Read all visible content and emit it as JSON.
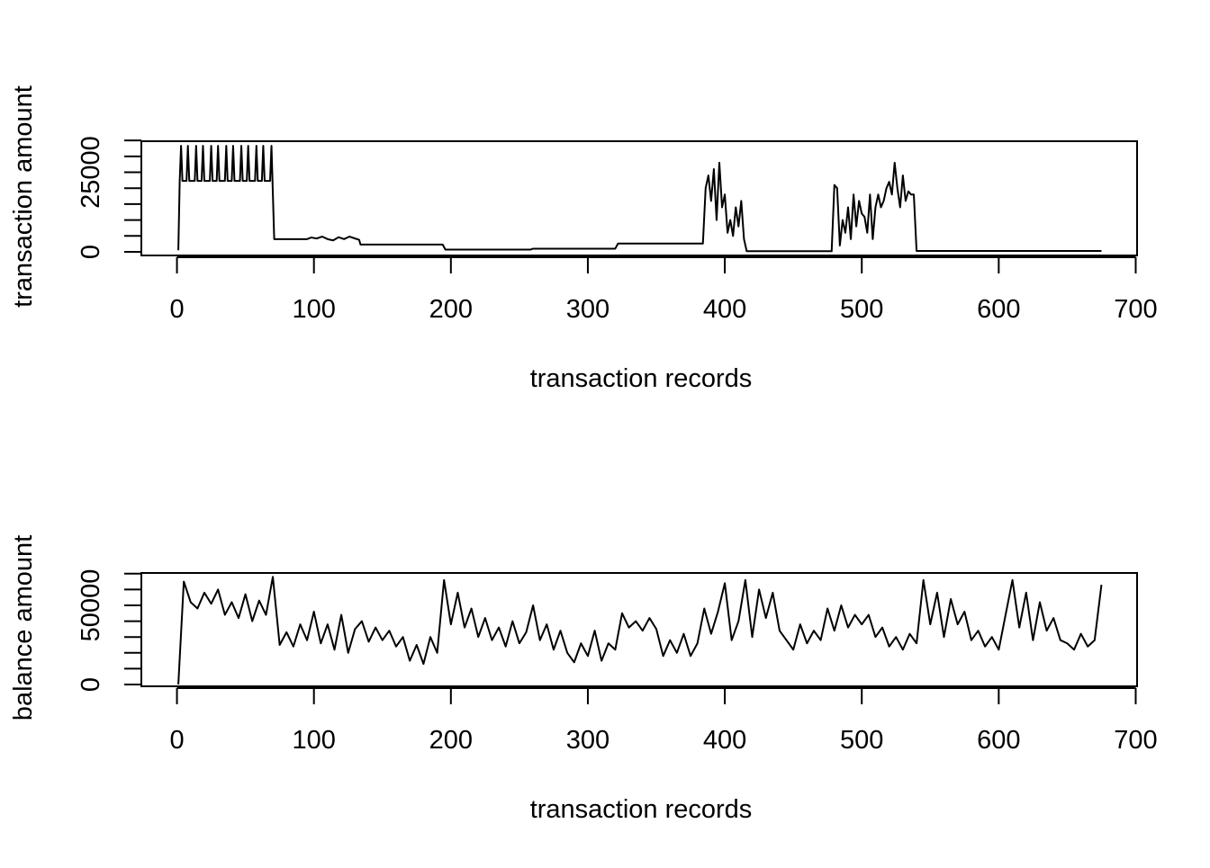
{
  "chart_data": [
    {
      "type": "line",
      "xlabel": "transaction records",
      "ylabel": "transaction amount",
      "color": "#000000",
      "xlim": [
        -26,
        701
      ],
      "ylim": [
        -1130,
        34750
      ],
      "xticks": [
        0,
        100,
        200,
        300,
        400,
        500,
        600,
        700
      ],
      "yticks": [
        0,
        25000
      ],
      "yticks_minor": [
        5000,
        10000,
        15000,
        20000,
        30000,
        35000
      ],
      "x": [
        1,
        2,
        3,
        4,
        7,
        8,
        9,
        13,
        14,
        15,
        18,
        19,
        20,
        24,
        25,
        26,
        29,
        30,
        31,
        35,
        36,
        37,
        40,
        41,
        42,
        46,
        47,
        48,
        51,
        52,
        53,
        57,
        58,
        59,
        62,
        63,
        64,
        68,
        69,
        71,
        95,
        98,
        102,
        106,
        110,
        114,
        118,
        122,
        126,
        130,
        133,
        134,
        194,
        196,
        258,
        260,
        320,
        322,
        384,
        386,
        388,
        390,
        392,
        394,
        396,
        398,
        400,
        402,
        404,
        406,
        408,
        410,
        412,
        414,
        416,
        478,
        480,
        482,
        484,
        486,
        488,
        490,
        492,
        494,
        496,
        498,
        500,
        502,
        504,
        506,
        508,
        510,
        512,
        514,
        516,
        518,
        520,
        522,
        524,
        526,
        528,
        530,
        532,
        534,
        536,
        538,
        540,
        600,
        675
      ],
      "values": [
        500,
        22300,
        33300,
        22300,
        22300,
        33300,
        22300,
        22300,
        33300,
        22300,
        22300,
        33300,
        22300,
        22300,
        33300,
        22300,
        22300,
        33300,
        22300,
        22300,
        33300,
        22300,
        22300,
        33300,
        22300,
        22300,
        33300,
        22300,
        22300,
        33300,
        22300,
        22300,
        33300,
        22300,
        22300,
        33300,
        22300,
        22300,
        33300,
        4000,
        4000,
        4500,
        4200,
        4800,
        4000,
        3600,
        4600,
        4000,
        4800,
        4200,
        3800,
        2300,
        2300,
        700,
        700,
        1000,
        1000,
        2600,
        2600,
        20000,
        24000,
        16000,
        26000,
        10000,
        28000,
        14000,
        18000,
        6000,
        10000,
        5000,
        14000,
        8000,
        16000,
        4000,
        200,
        200,
        21000,
        20000,
        2000,
        10000,
        6000,
        14000,
        4000,
        18000,
        8000,
        16000,
        12000,
        11000,
        6000,
        18000,
        4000,
        14000,
        18000,
        14000,
        16000,
        20000,
        22000,
        18000,
        28000,
        20000,
        14000,
        24000,
        16000,
        19000,
        18000,
        18000,
        300,
        300,
        300
      ]
    },
    {
      "type": "line",
      "xlabel": "transaction records",
      "ylabel": "balance amount",
      "color": "#000000",
      "xlim": [
        -26,
        701
      ],
      "ylim": [
        -1140,
        70450
      ],
      "xticks": [
        0,
        100,
        200,
        300,
        400,
        500,
        600,
        700
      ],
      "yticks": [
        0,
        50000
      ],
      "yticks_minor": [
        10000,
        20000,
        30000,
        40000,
        60000,
        70000
      ],
      "x": [
        1,
        5,
        10,
        15,
        20,
        25,
        30,
        35,
        40,
        45,
        50,
        55,
        60,
        65,
        70,
        75,
        80,
        85,
        90,
        95,
        100,
        105,
        110,
        115,
        120,
        125,
        130,
        135,
        140,
        145,
        150,
        155,
        160,
        165,
        170,
        175,
        180,
        185,
        190,
        195,
        200,
        205,
        210,
        215,
        220,
        225,
        230,
        235,
        240,
        245,
        250,
        255,
        260,
        265,
        270,
        275,
        280,
        285,
        290,
        295,
        300,
        305,
        310,
        315,
        320,
        325,
        330,
        335,
        340,
        345,
        350,
        355,
        360,
        365,
        370,
        375,
        380,
        385,
        390,
        395,
        400,
        405,
        410,
        415,
        420,
        425,
        430,
        435,
        440,
        445,
        450,
        455,
        460,
        465,
        470,
        475,
        480,
        485,
        490,
        495,
        500,
        505,
        510,
        515,
        520,
        525,
        530,
        535,
        540,
        545,
        550,
        555,
        560,
        565,
        570,
        575,
        580,
        585,
        590,
        595,
        600,
        605,
        610,
        615,
        620,
        625,
        630,
        635,
        640,
        645,
        650,
        655,
        660,
        665,
        670,
        675
      ],
      "values": [
        0,
        65000,
        52000,
        48000,
        58000,
        51000,
        60000,
        44000,
        52000,
        42000,
        57000,
        40000,
        53000,
        44000,
        68000,
        25000,
        33000,
        24000,
        38000,
        28000,
        46000,
        26000,
        38000,
        22000,
        44000,
        20000,
        35000,
        40000,
        27000,
        36000,
        28000,
        34000,
        24000,
        30000,
        15000,
        25000,
        13000,
        30000,
        20000,
        66000,
        38000,
        58000,
        36000,
        48000,
        30000,
        42000,
        28000,
        36000,
        24000,
        40000,
        26000,
        33000,
        50000,
        28000,
        38000,
        22000,
        34000,
        20000,
        14000,
        26000,
        18000,
        34000,
        15000,
        26000,
        22000,
        45000,
        36000,
        40000,
        34000,
        42000,
        35000,
        18000,
        28000,
        20000,
        32000,
        18000,
        26000,
        48000,
        32000,
        46000,
        64000,
        28000,
        40000,
        66000,
        30000,
        60000,
        42000,
        58000,
        34000,
        28000,
        22000,
        38000,
        26000,
        34000,
        28000,
        48000,
        34000,
        50000,
        36000,
        44000,
        38000,
        44000,
        30000,
        36000,
        24000,
        30000,
        22000,
        32000,
        26000,
        66000,
        38000,
        58000,
        30000,
        54000,
        38000,
        46000,
        28000,
        34000,
        24000,
        30000,
        22000,
        44000,
        66000,
        36000,
        58000,
        28000,
        52000,
        34000,
        42000,
        28000,
        26000,
        22000,
        32000,
        24000,
        28000,
        63000
      ]
    }
  ]
}
